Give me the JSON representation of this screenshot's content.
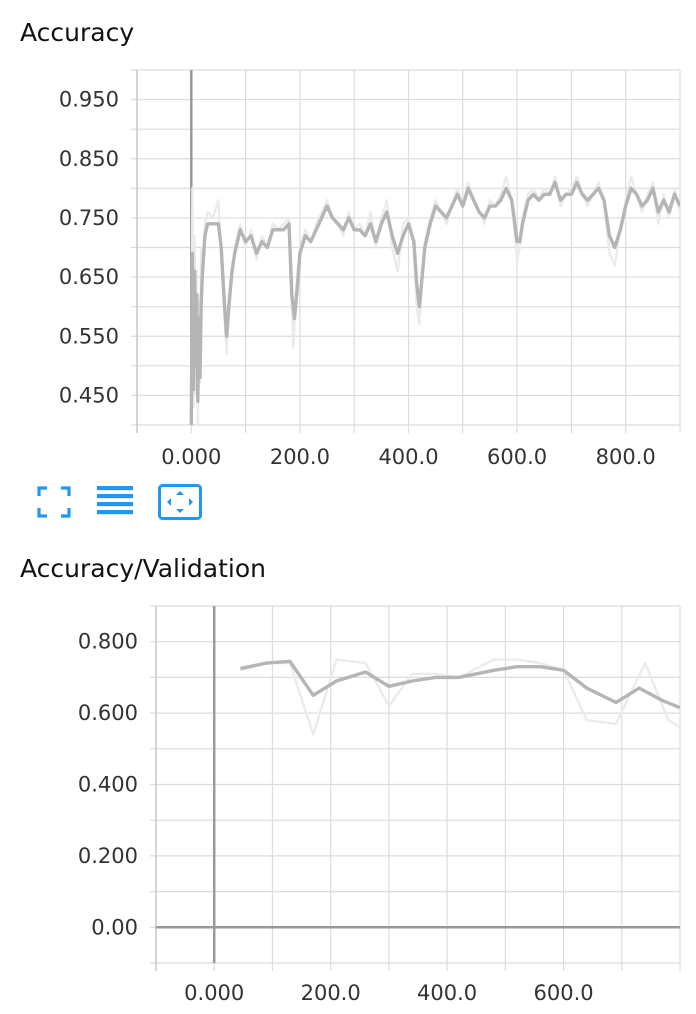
{
  "charts": [
    {
      "title": "Accuracy",
      "x_ticks": [
        "0.000",
        "200.0",
        "400.0",
        "600.0",
        "800.0"
      ],
      "y_ticks": [
        "0.950",
        "0.850",
        "0.750",
        "0.650",
        "0.550",
        "0.450"
      ]
    },
    {
      "title": "Accuracy/Validation",
      "x_ticks": [
        "0.000",
        "200.0",
        "400.0",
        "600.0"
      ],
      "y_ticks": [
        "0.800",
        "0.600",
        "0.400",
        "0.200",
        "0.00"
      ]
    }
  ],
  "toolbar": {
    "icons": [
      "fullscreen-icon",
      "data-table-icon",
      "fit-domain-icon"
    ],
    "accent": "#2196f3"
  },
  "chart_data": [
    {
      "type": "line",
      "title": "Accuracy",
      "xlim": [
        -100,
        900
      ],
      "ylim": [
        0.4,
        1.0
      ],
      "grid": true,
      "x_ticks": [
        0,
        200,
        400,
        600,
        800
      ],
      "y_ticks": [
        0.95,
        0.85,
        0.75,
        0.65,
        0.55,
        0.45
      ],
      "series": [
        {
          "style": "raw",
          "color": "#ebebeb",
          "x": [
            0,
            2,
            4,
            6,
            8,
            10,
            12,
            14,
            16,
            18,
            20,
            25,
            30,
            40,
            50,
            60,
            65,
            70,
            75,
            80,
            90,
            100,
            110,
            120,
            130,
            140,
            150,
            160,
            170,
            180,
            185,
            188,
            192,
            200,
            210,
            220,
            230,
            240,
            250,
            260,
            270,
            280,
            290,
            300,
            310,
            320,
            330,
            340,
            350,
            360,
            370,
            380,
            390,
            400,
            410,
            415,
            420,
            425,
            430,
            440,
            450,
            460,
            470,
            480,
            490,
            500,
            510,
            520,
            530,
            540,
            550,
            560,
            570,
            580,
            590,
            600,
            605,
            610,
            620,
            630,
            640,
            650,
            660,
            670,
            680,
            690,
            700,
            710,
            720,
            730,
            740,
            750,
            760,
            770,
            780,
            790,
            800,
            810,
            820,
            830,
            840,
            850,
            860,
            870,
            880,
            890,
            900
          ],
          "y": [
            0.4,
            0.8,
            0.43,
            0.72,
            0.45,
            0.66,
            0.4,
            0.62,
            0.47,
            0.7,
            0.62,
            0.74,
            0.76,
            0.75,
            0.78,
            0.6,
            0.52,
            0.6,
            0.66,
            0.7,
            0.74,
            0.7,
            0.73,
            0.68,
            0.72,
            0.7,
            0.74,
            0.73,
            0.74,
            0.75,
            0.6,
            0.53,
            0.62,
            0.7,
            0.73,
            0.71,
            0.74,
            0.76,
            0.78,
            0.75,
            0.74,
            0.72,
            0.76,
            0.73,
            0.74,
            0.72,
            0.76,
            0.7,
            0.75,
            0.78,
            0.7,
            0.66,
            0.74,
            0.75,
            0.7,
            0.6,
            0.57,
            0.65,
            0.71,
            0.75,
            0.78,
            0.76,
            0.74,
            0.77,
            0.8,
            0.77,
            0.81,
            0.78,
            0.76,
            0.74,
            0.78,
            0.77,
            0.79,
            0.82,
            0.78,
            0.68,
            0.7,
            0.75,
            0.79,
            0.8,
            0.78,
            0.8,
            0.79,
            0.82,
            0.77,
            0.79,
            0.8,
            0.82,
            0.79,
            0.77,
            0.79,
            0.81,
            0.78,
            0.69,
            0.67,
            0.73,
            0.78,
            0.82,
            0.79,
            0.76,
            0.79,
            0.81,
            0.74,
            0.79,
            0.75,
            0.8,
            0.76
          ]
        },
        {
          "style": "smoothed",
          "color": "#b5b5b5",
          "x": [
            0,
            2,
            4,
            6,
            8,
            10,
            12,
            14,
            16,
            18,
            20,
            25,
            30,
            40,
            50,
            55,
            60,
            65,
            70,
            75,
            80,
            90,
            100,
            110,
            120,
            130,
            140,
            150,
            160,
            170,
            180,
            185,
            190,
            195,
            200,
            210,
            220,
            230,
            240,
            250,
            260,
            270,
            280,
            290,
            300,
            310,
            320,
            330,
            340,
            350,
            360,
            370,
            380,
            390,
            400,
            410,
            415,
            420,
            425,
            430,
            440,
            450,
            460,
            470,
            480,
            490,
            500,
            510,
            520,
            530,
            540,
            550,
            560,
            570,
            580,
            590,
            600,
            605,
            610,
            620,
            630,
            640,
            650,
            660,
            670,
            680,
            690,
            700,
            710,
            720,
            730,
            740,
            750,
            760,
            770,
            780,
            790,
            800,
            810,
            820,
            830,
            840,
            850,
            860,
            870,
            880,
            890,
            900
          ],
          "y": [
            0.4,
            0.69,
            0.46,
            0.66,
            0.5,
            0.62,
            0.44,
            0.58,
            0.48,
            0.6,
            0.65,
            0.72,
            0.74,
            0.74,
            0.74,
            0.7,
            0.62,
            0.55,
            0.61,
            0.66,
            0.69,
            0.73,
            0.71,
            0.72,
            0.69,
            0.71,
            0.7,
            0.73,
            0.73,
            0.73,
            0.74,
            0.62,
            0.58,
            0.63,
            0.69,
            0.72,
            0.71,
            0.73,
            0.75,
            0.77,
            0.75,
            0.74,
            0.73,
            0.75,
            0.73,
            0.73,
            0.72,
            0.74,
            0.71,
            0.74,
            0.76,
            0.72,
            0.69,
            0.72,
            0.74,
            0.71,
            0.64,
            0.6,
            0.65,
            0.7,
            0.74,
            0.77,
            0.76,
            0.75,
            0.77,
            0.79,
            0.77,
            0.8,
            0.78,
            0.76,
            0.75,
            0.77,
            0.77,
            0.78,
            0.8,
            0.78,
            0.71,
            0.71,
            0.74,
            0.78,
            0.79,
            0.78,
            0.79,
            0.79,
            0.81,
            0.78,
            0.79,
            0.79,
            0.81,
            0.79,
            0.78,
            0.79,
            0.8,
            0.78,
            0.72,
            0.7,
            0.73,
            0.77,
            0.8,
            0.79,
            0.77,
            0.78,
            0.8,
            0.76,
            0.78,
            0.76,
            0.79,
            0.77
          ]
        }
      ]
    },
    {
      "type": "line",
      "title": "Accuracy/Validation",
      "xlim": [
        -100,
        800
      ],
      "ylim": [
        -0.1,
        0.9
      ],
      "grid": true,
      "x_ticks": [
        0,
        200,
        400,
        600
      ],
      "y_ticks": [
        0.8,
        0.6,
        0.4,
        0.2,
        0.0
      ],
      "series": [
        {
          "style": "raw",
          "color": "#ebebeb",
          "x": [
            45,
            90,
            130,
            170,
            210,
            260,
            300,
            340,
            380,
            420,
            480,
            520,
            560,
            600,
            640,
            690,
            740,
            780,
            800
          ],
          "y": [
            0.72,
            0.74,
            0.74,
            0.54,
            0.75,
            0.74,
            0.62,
            0.71,
            0.71,
            0.7,
            0.75,
            0.75,
            0.74,
            0.72,
            0.58,
            0.57,
            0.74,
            0.58,
            0.56
          ]
        },
        {
          "style": "smoothed",
          "color": "#b5b5b5",
          "x": [
            45,
            90,
            130,
            170,
            210,
            260,
            300,
            340,
            380,
            420,
            480,
            520,
            560,
            600,
            640,
            690,
            730,
            770,
            800
          ],
          "y": [
            0.725,
            0.74,
            0.745,
            0.65,
            0.69,
            0.715,
            0.675,
            0.69,
            0.7,
            0.7,
            0.72,
            0.73,
            0.73,
            0.72,
            0.67,
            0.63,
            0.67,
            0.635,
            0.615
          ]
        }
      ]
    }
  ]
}
